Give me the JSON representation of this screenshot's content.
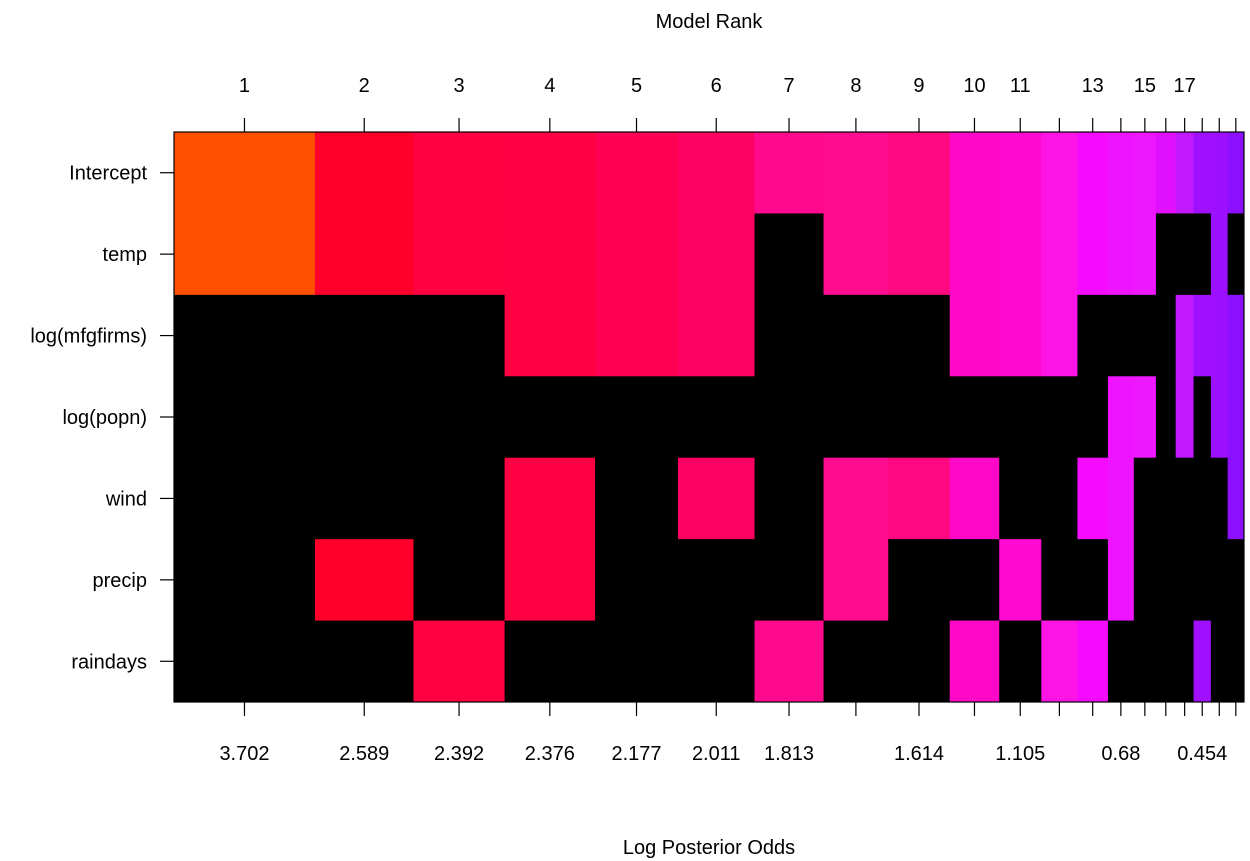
{
  "chart_data": {
    "type": "heatmap",
    "title": "",
    "top_axis_label": "Model Rank",
    "xlabel": "Log Posterior Odds",
    "ylabel": "",
    "variables": [
      "Intercept",
      "temp",
      "log(mfgfirms)",
      "log(popn)",
      "wind",
      "precip",
      "raindays"
    ],
    "rank_tick_labels": [
      "1",
      "2",
      "3",
      "4",
      "5",
      "6",
      "7",
      "8",
      "9",
      "10",
      "11",
      "13",
      "15",
      "17"
    ],
    "log_posterior_odds_tick_labels": [
      "3.702",
      "2.589",
      "2.392",
      "2.376",
      "2.177",
      "2.011",
      "1.813",
      "1.614",
      "1.105",
      "0.68",
      "0.454"
    ],
    "models": [
      {
        "rank": 1,
        "log_posterior_odds": 3.702,
        "color": "#ff4f00",
        "included": [
          "Intercept",
          "temp"
        ]
      },
      {
        "rank": 2,
        "log_posterior_odds": 2.589,
        "color": "#ff002a",
        "included": [
          "Intercept",
          "temp",
          "precip"
        ]
      },
      {
        "rank": 3,
        "log_posterior_odds": 2.392,
        "color": "#ff0040",
        "included": [
          "Intercept",
          "temp",
          "raindays"
        ]
      },
      {
        "rank": 4,
        "log_posterior_odds": 2.376,
        "color": "#ff0043",
        "included": [
          "Intercept",
          "temp",
          "log(mfgfirms)",
          "wind",
          "precip"
        ]
      },
      {
        "rank": 5,
        "log_posterior_odds": 2.177,
        "color": "#ff0052",
        "included": [
          "Intercept",
          "temp",
          "log(mfgfirms)"
        ]
      },
      {
        "rank": 6,
        "log_posterior_odds": 2.011,
        "color": "#ff0063",
        "included": [
          "Intercept",
          "temp",
          "log(mfgfirms)",
          "wind"
        ]
      },
      {
        "rank": 7,
        "log_posterior_odds": 1.813,
        "color": "#ff0a8c",
        "included": [
          "Intercept",
          "raindays"
        ]
      },
      {
        "rank": 8,
        "log_posterior_odds": 1.7,
        "color": "#ff0c90",
        "included": [
          "Intercept",
          "temp",
          "wind",
          "precip"
        ]
      },
      {
        "rank": 9,
        "log_posterior_odds": 1.614,
        "color": "#ff0880",
        "included": [
          "Intercept",
          "temp",
          "wind"
        ]
      },
      {
        "rank": 10,
        "log_posterior_odds": 1.3,
        "color": "#ff08c8",
        "included": [
          "Intercept",
          "temp",
          "log(mfgfirms)",
          "wind",
          "raindays"
        ]
      },
      {
        "rank": 11,
        "log_posterior_odds": 1.105,
        "color": "#ff0ad2",
        "included": [
          "Intercept",
          "temp",
          "log(mfgfirms)",
          "precip"
        ]
      },
      {
        "rank": 12,
        "log_posterior_odds": 0.95,
        "color": "#ff14e6",
        "included": [
          "Intercept",
          "temp",
          "log(mfgfirms)",
          "raindays"
        ]
      },
      {
        "rank": 13,
        "log_posterior_odds": 0.8,
        "color": "#f50cff",
        "included": [
          "Intercept",
          "temp",
          "wind",
          "raindays"
        ]
      },
      {
        "rank": 14,
        "log_posterior_odds": 0.68,
        "color": "#ef14ff",
        "included": [
          "Intercept",
          "temp",
          "log(popn)",
          "wind",
          "precip"
        ]
      },
      {
        "rank": 15,
        "log_posterior_odds": 0.58,
        "color": "#ee18ff",
        "included": [
          "Intercept",
          "temp",
          "log(popn)"
        ]
      },
      {
        "rank": 16,
        "log_posterior_odds": 0.52,
        "color": "#e010ff",
        "included": [
          "Intercept"
        ]
      },
      {
        "rank": 17,
        "log_posterior_odds": 0.47,
        "color": "#c018ff",
        "included": [
          "Intercept",
          "log(mfgfirms)",
          "log(popn)"
        ]
      },
      {
        "rank": 18,
        "log_posterior_odds": 0.454,
        "color": "#a010ff",
        "included": [
          "Intercept",
          "log(mfgfirms)",
          "raindays"
        ]
      },
      {
        "rank": 19,
        "log_posterior_odds": 0.44,
        "color": "#9c10ff",
        "included": [
          "Intercept",
          "temp",
          "log(mfgfirms)",
          "log(popn)"
        ]
      },
      {
        "rank": 20,
        "log_posterior_odds": 0.43,
        "color": "#8c10ff",
        "included": [
          "Intercept",
          "log(mfgfirms)",
          "log(popn)",
          "wind"
        ]
      }
    ],
    "excluded_color": "#000000",
    "grid": false,
    "legend": "none"
  }
}
